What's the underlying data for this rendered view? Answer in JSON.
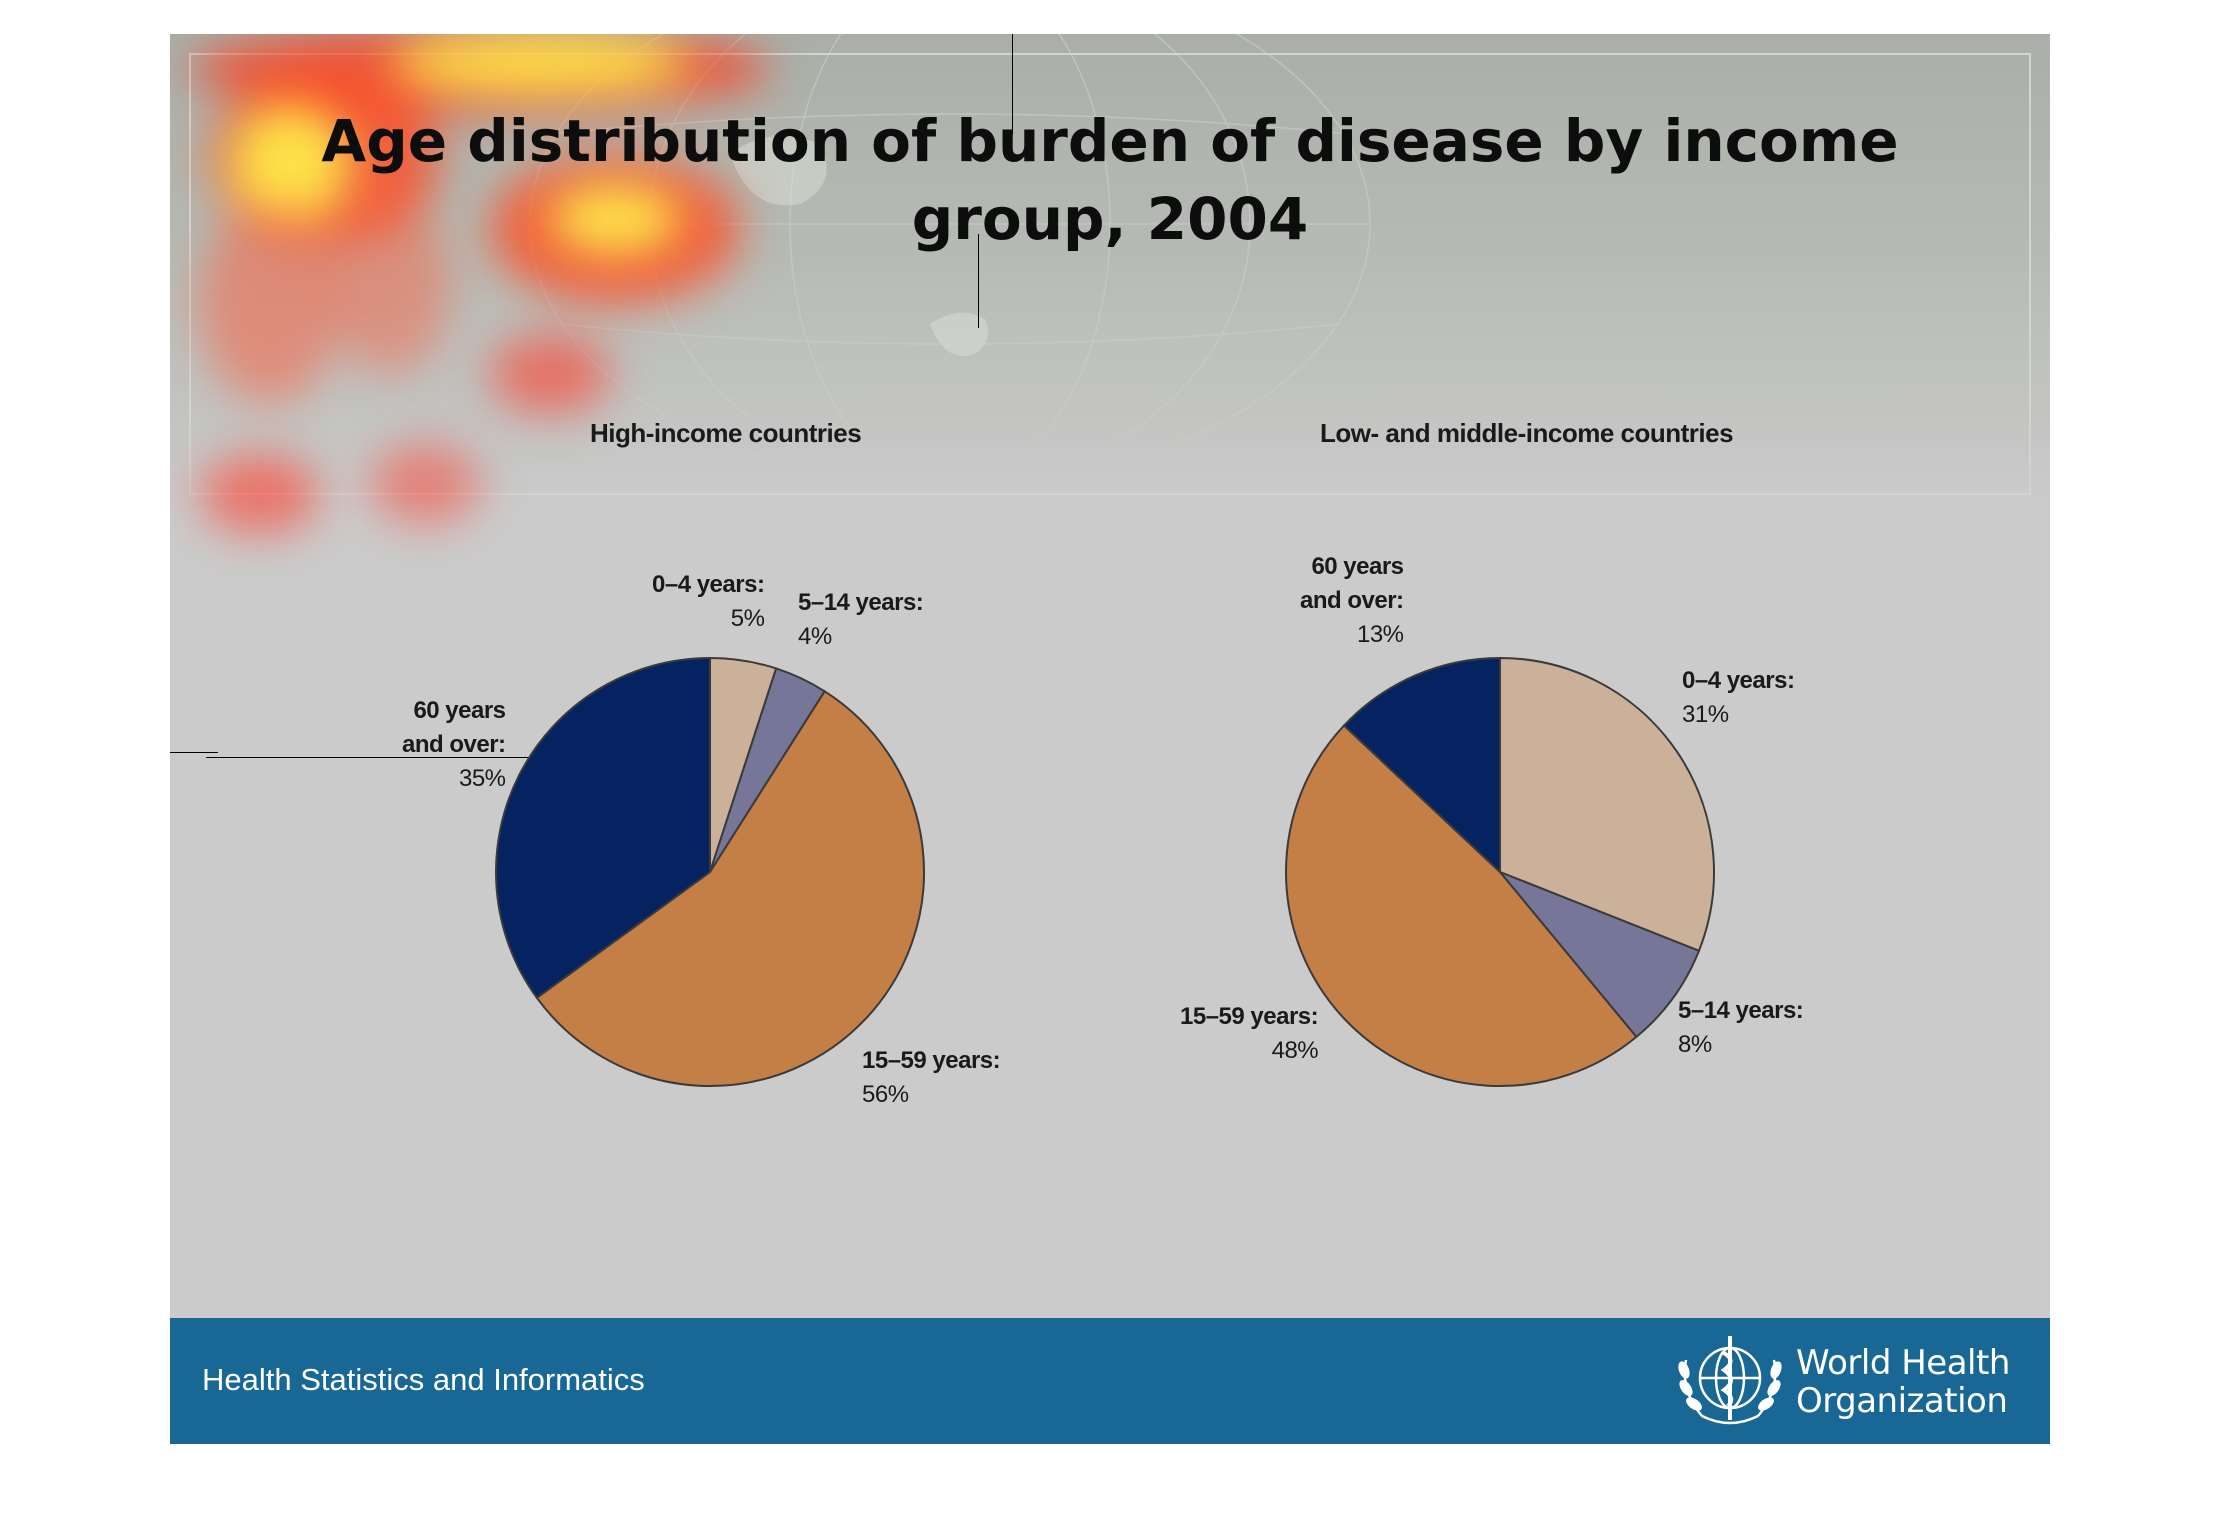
{
  "title": {
    "line1": "Age distribution of burden of disease by income",
    "line2": "group, 2004"
  },
  "footer": {
    "unit": "Health Statistics and Informatics",
    "org_line1": "World Health",
    "org_line2": "Organization",
    "logo_icon": "who-emblem-icon"
  },
  "colors": {
    "age_0_4": "#cbb09a",
    "age_5_14": "#767699",
    "age_15_59": "#c37f46",
    "age_60_plus": "#052361",
    "footer_band": "#196795"
  },
  "chart_data": [
    {
      "type": "pie",
      "title": "High-income countries",
      "slices": [
        {
          "label": "0–4 years:",
          "value": 5,
          "display": "5%"
        },
        {
          "label": "5–14 years:",
          "value": 4,
          "display": "4%"
        },
        {
          "label": "15–59 years:",
          "value": 56,
          "display": "56%"
        },
        {
          "label_line1": "60 years",
          "label_line2": "and over:",
          "value": 35,
          "display": "35%"
        }
      ]
    },
    {
      "type": "pie",
      "title": "Low- and middle-income countries",
      "slices": [
        {
          "label": "0–4 years:",
          "value": 31,
          "display": "31%"
        },
        {
          "label": "5–14 years:",
          "value": 8,
          "display": "8%"
        },
        {
          "label": "15–59 years:",
          "value": 48,
          "display": "48%"
        },
        {
          "label_line1": "60 years",
          "label_line2": "and over:",
          "value": 13,
          "display": "13%"
        }
      ]
    }
  ]
}
